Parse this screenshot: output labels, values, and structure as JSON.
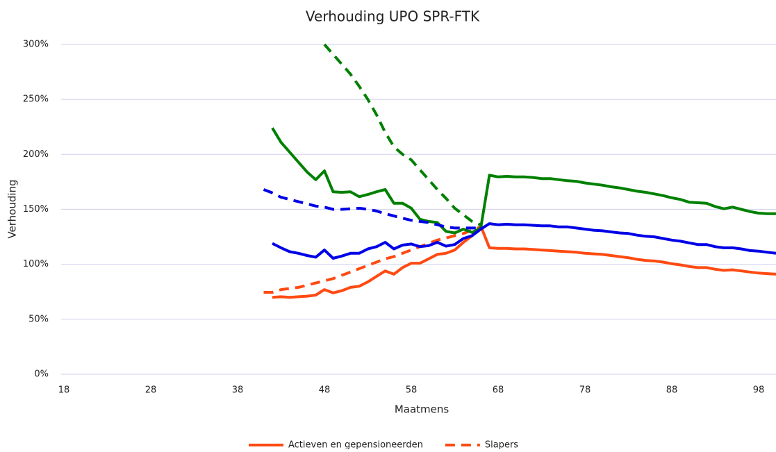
{
  "chart_data": {
    "type": "line",
    "title": "Verhouding UPO SPR-FTK",
    "x_label": "Maatmens",
    "y_label": "Verhouding",
    "x": [
      41,
      42,
      43,
      44,
      45,
      46,
      47,
      48,
      49,
      50,
      51,
      52,
      53,
      54,
      55,
      56,
      57,
      58,
      59,
      60,
      61,
      62,
      63,
      64,
      65,
      66,
      67,
      68,
      69,
      70,
      71,
      72,
      73,
      74,
      75,
      76,
      77,
      78,
      79,
      80,
      81,
      82,
      83,
      84,
      85,
      86,
      87,
      88,
      89,
      90,
      91,
      92,
      93,
      94,
      95,
      96,
      97,
      98,
      99,
      100
    ],
    "xlim": [
      18,
      100
    ],
    "xticks": [
      18,
      28,
      38,
      48,
      58,
      68,
      78,
      88,
      98
    ],
    "ylim": [
      0,
      300
    ],
    "yticks": [
      {
        "value": 0,
        "label": "0%"
      },
      {
        "value": 50,
        "label": "50%"
      },
      {
        "value": 100,
        "label": "100%"
      },
      {
        "value": 150,
        "label": "150%"
      },
      {
        "value": 200,
        "label": "200%"
      },
      {
        "value": 250,
        "label": "250%"
      },
      {
        "value": 300,
        "label": "300%"
      }
    ],
    "grid": true,
    "legend": "bottom",
    "series": [
      {
        "name": "Actieven en gepensioneerden",
        "color": "#ff4a12",
        "dashed": false,
        "values": [
          null,
          70,
          70.5,
          70,
          70.5,
          71,
          72,
          77,
          74,
          76,
          79,
          80,
          84,
          89,
          94,
          91,
          97,
          101,
          101,
          105,
          109,
          110,
          113,
          120,
          126,
          135,
          115,
          114.5,
          114.5,
          114,
          114,
          113.5,
          113,
          112.5,
          112,
          111.5,
          111,
          110,
          109.5,
          109,
          108,
          107,
          106,
          104.5,
          103.5,
          103,
          102,
          100.5,
          99.5,
          98,
          97,
          97,
          95.5,
          94.5,
          95,
          94,
          93,
          92,
          91.5,
          91
        ]
      },
      {
        "name": "Slapers",
        "color": "#ff4a12",
        "dashed": true,
        "values": [
          74.5,
          74.5,
          77,
          78,
          79,
          81,
          83,
          85,
          87,
          90,
          93,
          96,
          99,
          102,
          105,
          107,
          110,
          113,
          116,
          119,
          122,
          124,
          126,
          128,
          131,
          134,
          null,
          null,
          null,
          null,
          null,
          null,
          null,
          null,
          null,
          null,
          null,
          null,
          null,
          null,
          null,
          null,
          null,
          null,
          null,
          null,
          null,
          null,
          null,
          null,
          null,
          null,
          null,
          null,
          null,
          null,
          null,
          null,
          null,
          null
        ]
      },
      {
        "color": "#008000",
        "dashed": false,
        "values": [
          null,
          224,
          211,
          202,
          193,
          184,
          177,
          185,
          166,
          165.5,
          166,
          161.5,
          163.5,
          166,
          168,
          155.5,
          155.5,
          151,
          141,
          139,
          138,
          130,
          128.5,
          132,
          129,
          133,
          181,
          179.5,
          180,
          179.5,
          179.5,
          179,
          178,
          178,
          177,
          176,
          175.5,
          174,
          173,
          172,
          170.5,
          169.5,
          168,
          166.5,
          165.5,
          164,
          162.5,
          160.5,
          159,
          156.5,
          156,
          155.5,
          152.5,
          150.5,
          152,
          150,
          148,
          146.5,
          146,
          146
        ]
      },
      {
        "color": "#008000",
        "dashed": true,
        "values": [
          null,
          null,
          null,
          null,
          null,
          null,
          null,
          300,
          291,
          282,
          273,
          262,
          250,
          236,
          220,
          207,
          200,
          195,
          186,
          177,
          168,
          160,
          151,
          145,
          139,
          136,
          null,
          null,
          null,
          null,
          null,
          null,
          null,
          null,
          null,
          null,
          null,
          null,
          null,
          null,
          null,
          null,
          null,
          null,
          null,
          null,
          null,
          null,
          null,
          null,
          null,
          null,
          null,
          null,
          null,
          null,
          null,
          null,
          null,
          null
        ]
      },
      {
        "color": "#0000e6",
        "dashed": false,
        "values": [
          null,
          119,
          115,
          111.5,
          110,
          108,
          106.5,
          113,
          105.5,
          107.5,
          110,
          110,
          114,
          116,
          120,
          114,
          117.5,
          118.5,
          116,
          117,
          120,
          116.5,
          118,
          123.5,
          126,
          132,
          137,
          136,
          136.5,
          136,
          136,
          135.5,
          135,
          135,
          134,
          134,
          133,
          132,
          131,
          130.5,
          129.5,
          128.5,
          128,
          126.5,
          125.5,
          125,
          123.5,
          122,
          121,
          119.5,
          118,
          118,
          116,
          115,
          115,
          114,
          112.5,
          112,
          111,
          110
        ]
      },
      {
        "color": "#0000e6",
        "dashed": true,
        "values": [
          168,
          165,
          161,
          159,
          157,
          155,
          153,
          152,
          150,
          150,
          150.5,
          151,
          150,
          148.5,
          146,
          144,
          142,
          140,
          139,
          138,
          136,
          134,
          133,
          133,
          133,
          133,
          null,
          null,
          null,
          null,
          null,
          null,
          null,
          null,
          null,
          null,
          null,
          null,
          null,
          null,
          null,
          null,
          null,
          null,
          null,
          null,
          null,
          null,
          null,
          null,
          null,
          null,
          null,
          null,
          null,
          null,
          null,
          null,
          null,
          null
        ]
      }
    ]
  }
}
